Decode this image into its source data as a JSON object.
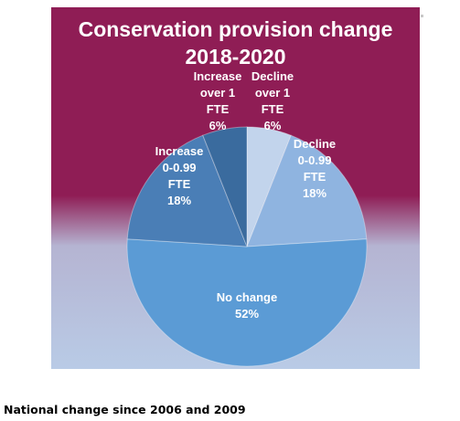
{
  "chart_data": {
    "type": "pie",
    "title": [
      "Conservation provision change",
      "2018-2020"
    ],
    "slices": [
      {
        "label": [
          "Decline",
          "over 1",
          "FTE"
        ],
        "value": 6,
        "display": "6%",
        "color": "#c2d4ec"
      },
      {
        "label": [
          "Decline",
          "0-0.99",
          "FTE"
        ],
        "value": 18,
        "display": "18%",
        "color": "#8fb4e0"
      },
      {
        "label": [
          "No change"
        ],
        "value": 52,
        "display": "52%",
        "color": "#5b9bd5"
      },
      {
        "label": [
          "Increase",
          "0-0.99",
          "FTE"
        ],
        "value": 18,
        "display": "18%",
        "color": "#4a7eb6"
      },
      {
        "label": [
          "Increase",
          "over 1",
          "FTE"
        ],
        "value": 6,
        "display": "6%",
        "color": "#3a6b9e"
      }
    ]
  },
  "heading": "National change since 2006 and 2009"
}
